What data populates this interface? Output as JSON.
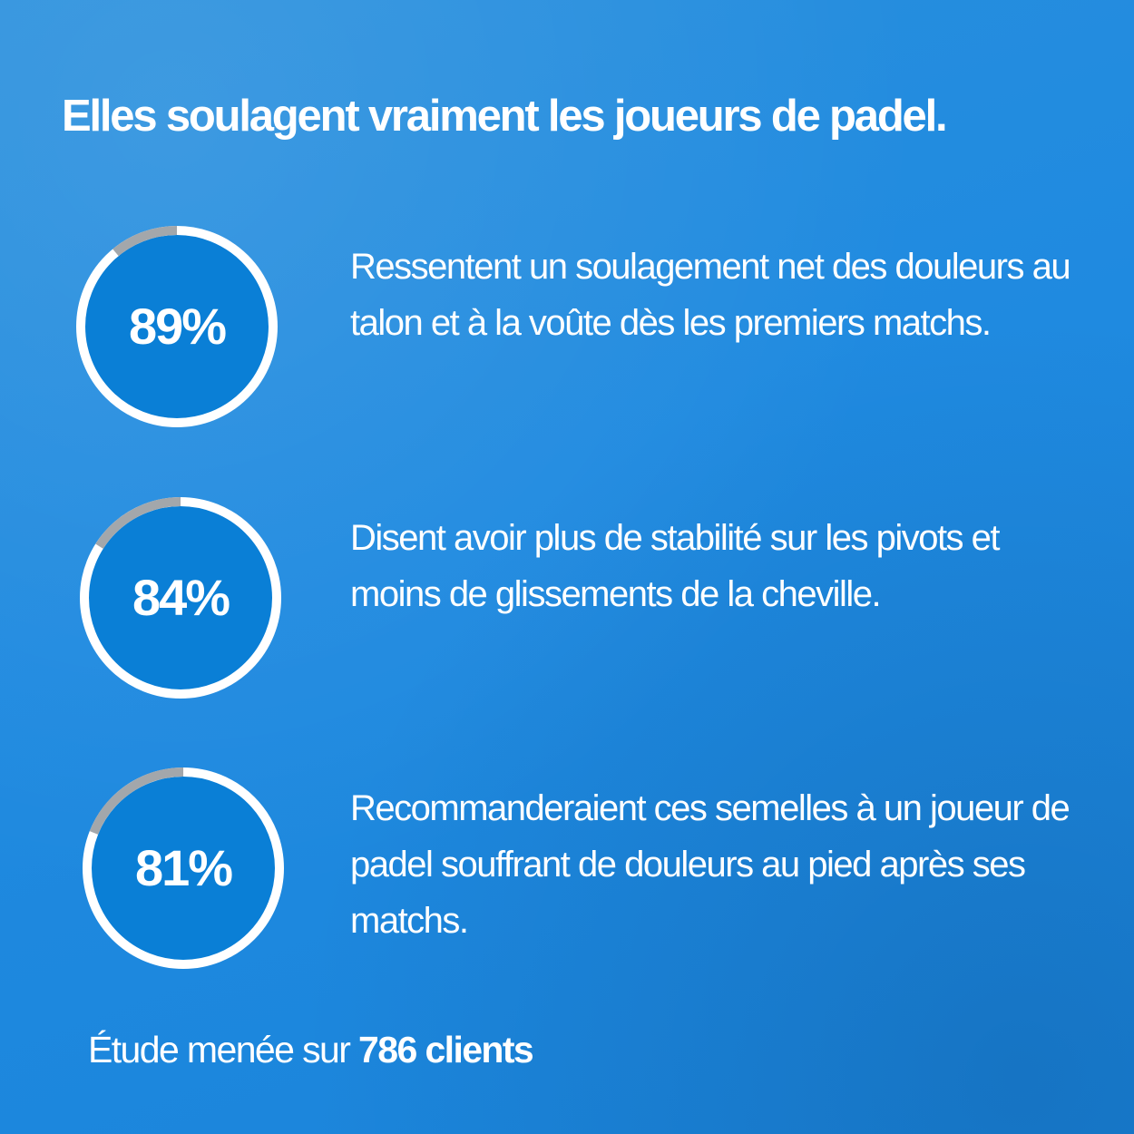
{
  "headline": "Elles soulagent vraiment les joueurs de padel.",
  "colors": {
    "background": "#1f8ae0",
    "ring_fill": "#0a7fd6",
    "ring_track": "#ffffff",
    "ring_remainder": "#a3a7ab",
    "text": "#ffffff"
  },
  "stats": [
    {
      "value_label": "89%",
      "percent": 89,
      "text": "Ressentent un soulagement net des douleurs au talon et à la voûte dès les premiers matchs."
    },
    {
      "value_label": "84%",
      "percent": 84,
      "text": "Disent avoir plus de stabilité sur les pivots et moins de glissements de la cheville."
    },
    {
      "value_label": "81%",
      "percent": 81,
      "text": "Recommanderaient ces semelles à un joueur de padel souffrant de douleurs au pied après ses matchs."
    }
  ],
  "footer": {
    "prefix": "Étude menée sur ",
    "highlight": "786 clients"
  }
}
